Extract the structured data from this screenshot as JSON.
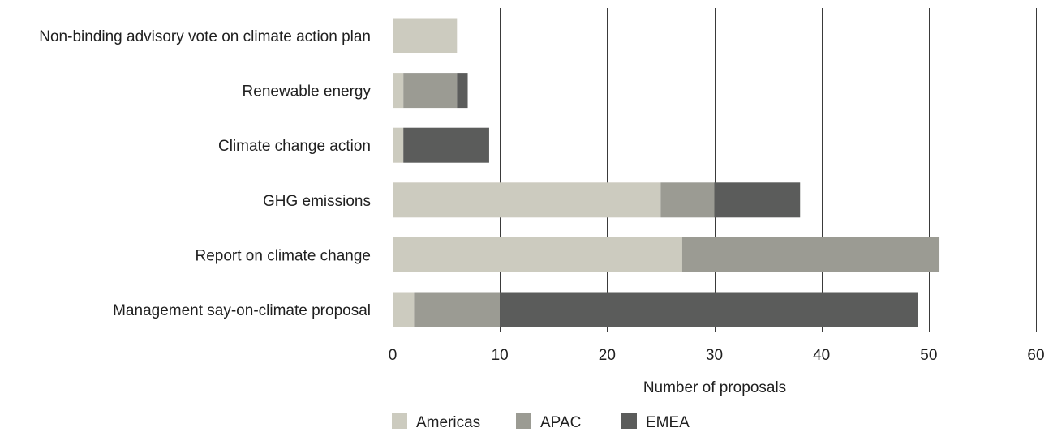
{
  "chart_data": {
    "type": "bar",
    "orientation": "horizontal",
    "stacked": true,
    "categories": [
      "Non-binding advisory vote on climate action plan",
      "Renewable energy",
      "Climate change action",
      "GHG emissions",
      "Report on climate change",
      "Management say-on-climate proposal"
    ],
    "series": [
      {
        "name": "Americas",
        "color": "#cccbbf",
        "values": [
          6,
          1,
          1,
          25,
          27,
          2
        ]
      },
      {
        "name": "APAC",
        "color": "#9b9b93",
        "values": [
          0,
          5,
          0,
          5,
          24,
          8
        ]
      },
      {
        "name": "EMEA",
        "color": "#5b5c5b",
        "values": [
          0,
          1,
          8,
          8,
          0,
          39
        ]
      }
    ],
    "xlabel": "Number of proposals",
    "ylabel": "",
    "xlim": [
      0,
      60
    ],
    "xticks": [
      0,
      10,
      20,
      30,
      40,
      50,
      60
    ],
    "grid": true,
    "legend_position": "bottom"
  }
}
